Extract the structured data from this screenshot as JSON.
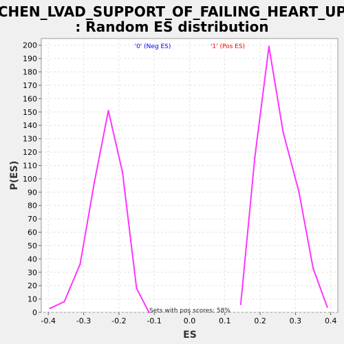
{
  "chart_data": {
    "type": "line",
    "title_line1": "CHEN_LVAD_SUPPORT_OF_FAILING_HEART_UP",
    "title_line2": ": Random ES distribution",
    "xlabel": "ES",
    "ylabel": "P(ES)",
    "xlim": [
      -0.42,
      0.42
    ],
    "ylim": [
      0,
      205
    ],
    "xticks": [
      -0.4,
      -0.3,
      -0.2,
      -0.1,
      0.0,
      0.1,
      0.2,
      0.3,
      0.4
    ],
    "xtick_labels": [
      "-0.4",
      "-0.3",
      "-0.2",
      "-0.1",
      "0.0",
      "0.1",
      "0.2",
      "0.3",
      "0.4"
    ],
    "yticks": [
      0,
      10,
      20,
      30,
      40,
      50,
      60,
      70,
      80,
      90,
      100,
      110,
      120,
      130,
      140,
      150,
      160,
      170,
      180,
      190,
      200
    ],
    "grid": true,
    "legend": [
      {
        "label": "'0' (Neg ES)",
        "color": "#0000ff"
      },
      {
        "label": "'1' (Pos ES)",
        "color": "#ff0000"
      }
    ],
    "annotation": "Sets with pos scores: 58%",
    "line_color": "#ff33ff",
    "series": [
      {
        "x": [
          -0.395,
          -0.355,
          -0.31,
          -0.27,
          -0.23,
          -0.19,
          -0.15,
          -0.115
        ],
        "y": [
          3,
          8,
          36,
          97,
          151,
          105,
          18,
          0
        ]
      },
      {
        "x": [
          0.145,
          0.185,
          0.225,
          0.265,
          0.31,
          0.35,
          0.39
        ],
        "y": [
          6,
          116,
          199,
          135,
          90,
          33,
          4
        ]
      }
    ]
  }
}
